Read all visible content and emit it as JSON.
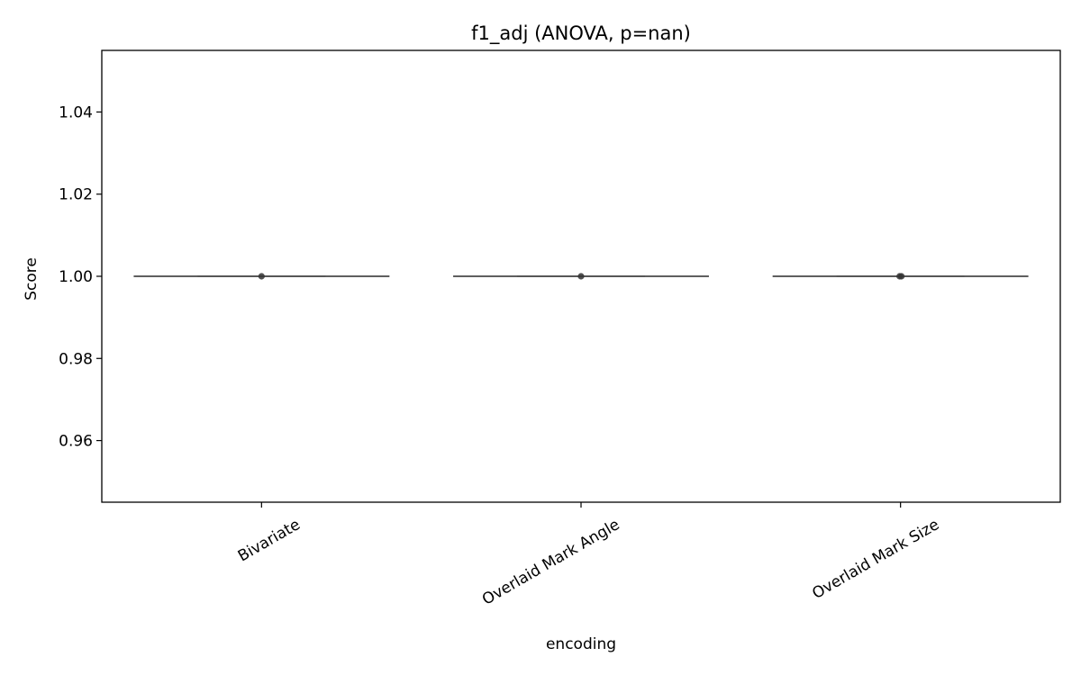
{
  "chart_data": {
    "type": "box",
    "title": "f1_adj (ANOVA, p=nan)",
    "xlabel": "encoding",
    "ylabel": "Score",
    "categories": [
      "Bivariate",
      "Overlaid Mark Angle",
      "Overlaid Mark Size"
    ],
    "series": [
      {
        "category": "Bivariate",
        "min": 1.0,
        "q1": 1.0,
        "median": 1.0,
        "q3": 1.0,
        "max": 1.0,
        "points": [
          1.0
        ]
      },
      {
        "category": "Overlaid Mark Angle",
        "min": 1.0,
        "q1": 1.0,
        "median": 1.0,
        "q3": 1.0,
        "max": 1.0,
        "points": [
          1.0
        ]
      },
      {
        "category": "Overlaid Mark Size",
        "min": 1.0,
        "q1": 1.0,
        "median": 1.0,
        "q3": 1.0,
        "max": 1.0,
        "points": [
          1.0,
          1.0
        ]
      }
    ],
    "yticks": [
      0.96,
      0.98,
      1.0,
      1.02,
      1.04
    ],
    "ytick_labels": [
      "0.96",
      "0.98",
      "1.00",
      "1.02",
      "1.04"
    ],
    "ylim": [
      0.945,
      1.055
    ],
    "grid": false,
    "colors": {
      "box_line": "#555555",
      "point": "#333333",
      "axes": "#000000"
    }
  }
}
